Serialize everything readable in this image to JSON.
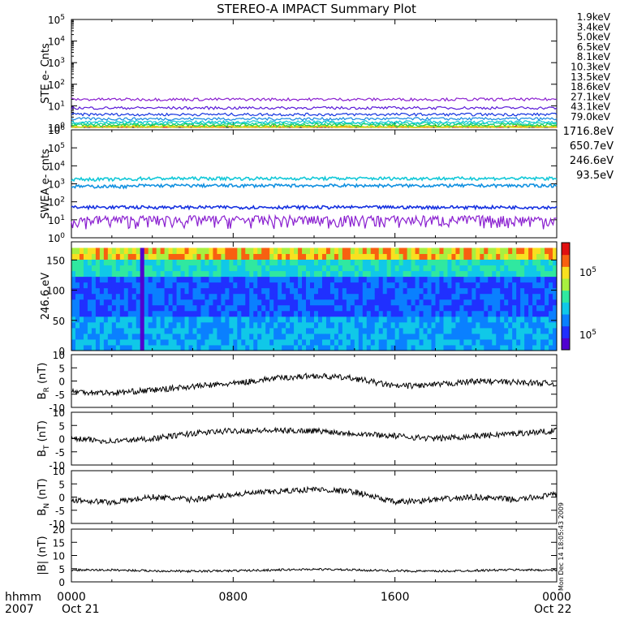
{
  "title": "STEREO-A IMPACT Summary Plot",
  "colors": {
    "1.9keV": "#8a1fd0",
    "3.4keV": "#5a1bd8",
    "5.0keV": "#1434e0",
    "6.5keV": "#1488e0",
    "8.1keV": "#12c8d8",
    "10.3keV": "#10d0a0",
    "13.5keV": "#20d040",
    "18.6keV": "#b8e020",
    "27.1keV": "#f0d010",
    "43.1keV": "#f09010",
    "79.0keV": "#e02020",
    "1716.8eV": "#8a1fd0",
    "650.7eV": "#1530e0",
    "246.6eV": "#1090e0",
    "93.5eV": "#12c8d8"
  },
  "footer": {
    "time_label": "hhmm",
    "year": "2007",
    "date_start": "Oct 21",
    "date_end": "Oct 22",
    "stamp": "Mon Dec 14 18:05:43 2009"
  },
  "chart_data": [
    {
      "type": "line",
      "panel": "ste",
      "ylabel": "STE e- Cnts",
      "yscale": "log",
      "ylim": [
        1,
        100000
      ],
      "yticks": [
        "10^0",
        "10^1",
        "10^2",
        "10^3",
        "10^4",
        "10^5"
      ],
      "x_hours": [
        0,
        24
      ],
      "series": [
        {
          "name": "1.9keV",
          "approx_level": 20
        },
        {
          "name": "3.4keV",
          "approx_level": 8
        },
        {
          "name": "5.0keV",
          "approx_level": 4
        },
        {
          "name": "6.5keV",
          "approx_level": 2.5
        },
        {
          "name": "8.1keV",
          "approx_level": 1.8
        },
        {
          "name": "10.3keV",
          "approx_level": 1.5
        },
        {
          "name": "13.5keV",
          "approx_level": 1.3
        },
        {
          "name": "18.6keV",
          "approx_level": 1.1
        },
        {
          "name": "27.1keV",
          "approx_level": 1.05
        },
        {
          "name": "43.1keV",
          "approx_level": 1.02
        },
        {
          "name": "79.0keV",
          "approx_level": 1.01
        }
      ]
    },
    {
      "type": "line",
      "panel": "swea",
      "ylabel": "SWEA e- cnts",
      "yscale": "log",
      "ylim": [
        1,
        1000000
      ],
      "yticks": [
        "10^0",
        "10^1",
        "10^2",
        "10^3",
        "10^4",
        "10^5",
        "10^6"
      ],
      "x_hours": [
        0,
        24
      ],
      "series": [
        {
          "name": "1716.8eV",
          "approx_level": 10
        },
        {
          "name": "650.7eV",
          "approx_level": 50
        },
        {
          "name": "246.6eV",
          "approx_level": 800
        },
        {
          "name": "93.5eV",
          "approx_level": 2000
        }
      ]
    },
    {
      "type": "heatmap",
      "panel": "pad",
      "ylabel": "246.6 eV",
      "ylim": [
        0,
        180
      ],
      "yticks": [
        0,
        50,
        100,
        150
      ],
      "colorbar_ticks": [
        "10^5",
        "10^5"
      ],
      "x_hours": [
        0,
        24
      ]
    },
    {
      "type": "line",
      "panel": "br",
      "ylabel": "B_R (nT)",
      "ylim": [
        -10,
        10
      ],
      "yticks": [
        -10,
        -5,
        0,
        5,
        10
      ],
      "x_hours": [
        0,
        2,
        4,
        6,
        8,
        10,
        12,
        14,
        16,
        18,
        20,
        22,
        24
      ],
      "values": [
        -4,
        -4.5,
        -3.5,
        -2,
        -1,
        1,
        2,
        1,
        -2,
        -1.5,
        0,
        -0.5,
        -1
      ]
    },
    {
      "type": "line",
      "panel": "bt",
      "ylabel": "B_T (nT)",
      "ylim": [
        -10,
        10
      ],
      "yticks": [
        -10,
        -5,
        0,
        5,
        10
      ],
      "x_hours": [
        0,
        2,
        4,
        6,
        8,
        10,
        12,
        14,
        16,
        18,
        20,
        22,
        24
      ],
      "values": [
        0,
        -1,
        0,
        2,
        3,
        3,
        3,
        2,
        1,
        0,
        1,
        2,
        3
      ]
    },
    {
      "type": "line",
      "panel": "bn",
      "ylabel": "B_N (nT)",
      "ylim": [
        -10,
        10
      ],
      "yticks": [
        -10,
        -5,
        0,
        5,
        10
      ],
      "x_hours": [
        0,
        2,
        4,
        6,
        8,
        10,
        12,
        14,
        16,
        18,
        20,
        22,
        24
      ],
      "values": [
        -1,
        -2,
        0,
        -1,
        1,
        2,
        3,
        2,
        -2,
        -1,
        0,
        -1,
        1
      ]
    },
    {
      "type": "line",
      "panel": "bmag",
      "ylabel": "|B| (nT)",
      "ylim": [
        0,
        20
      ],
      "yticks": [
        0,
        5,
        10,
        15,
        20
      ],
      "x_hours": [
        0,
        2,
        4,
        6,
        8,
        10,
        12,
        14,
        16,
        18,
        20,
        22,
        24
      ],
      "values": [
        4.5,
        4.5,
        4.2,
        4.0,
        4.2,
        4.5,
        4.8,
        4.5,
        4.2,
        4.0,
        4.3,
        4.6,
        4.4
      ]
    }
  ],
  "x_axis": {
    "tick_labels": [
      "0000",
      "0800",
      "1600",
      "0000"
    ],
    "tick_hours": [
      0,
      8,
      16,
      24
    ]
  }
}
